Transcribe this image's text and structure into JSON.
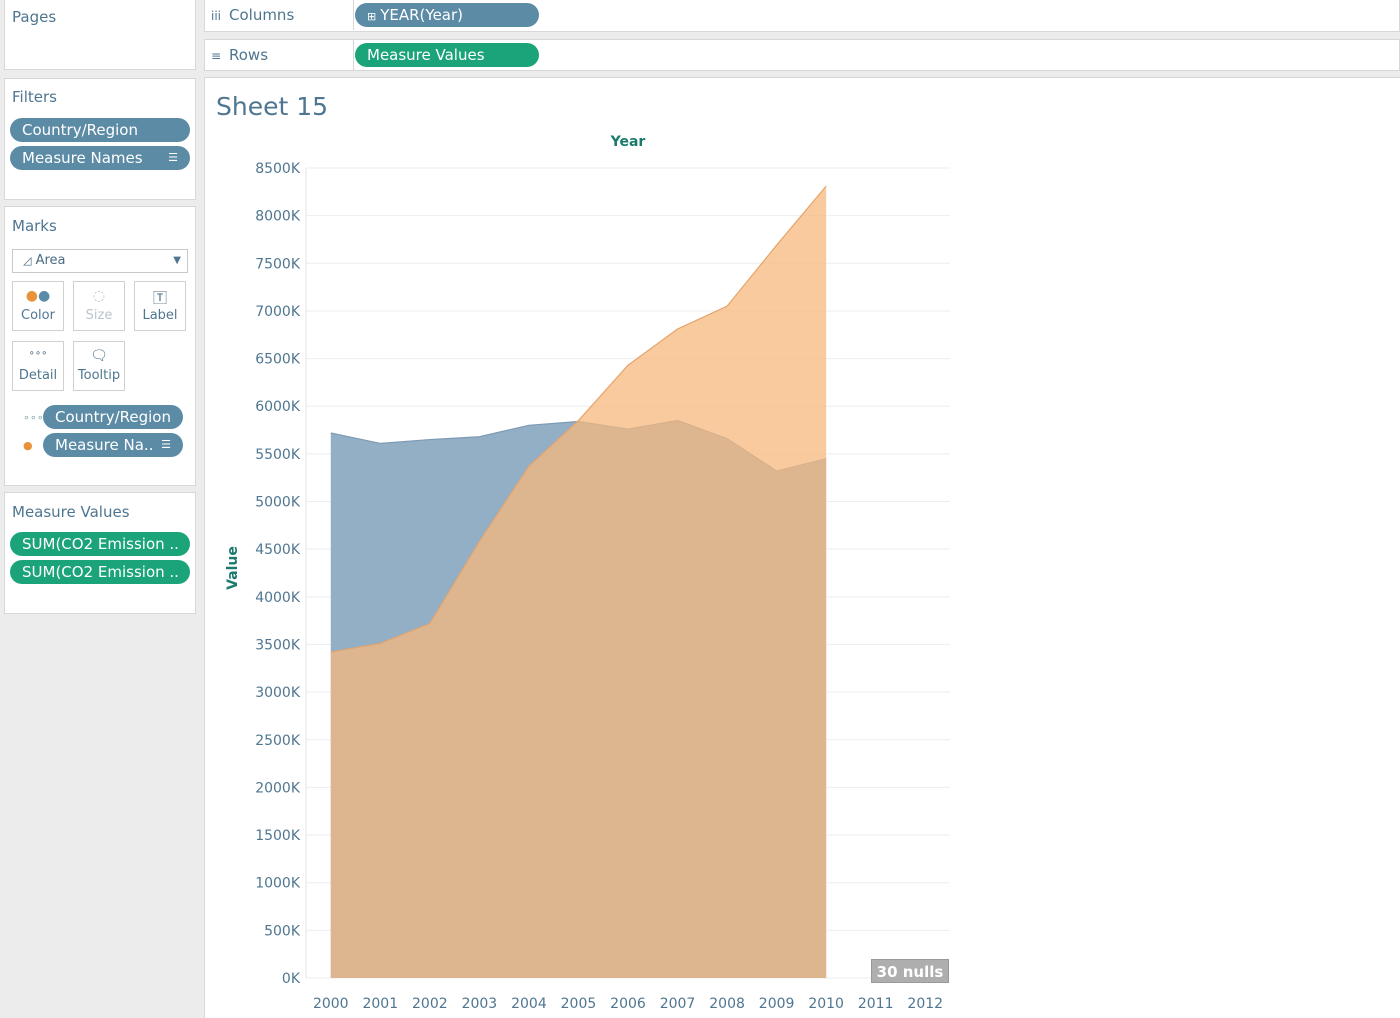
{
  "pages": {
    "title": "Pages"
  },
  "shelves": {
    "columns": {
      "label": "Columns",
      "pill": "YEAR(Year)",
      "pill_icon": "⊞"
    },
    "rows": {
      "label": "Rows",
      "pill": "Measure Values"
    }
  },
  "filters": {
    "title": "Filters",
    "items": [
      "Country/Region",
      "Measure Names"
    ]
  },
  "marks": {
    "title": "Marks",
    "mark_type": "Area",
    "cards": {
      "color": "Color",
      "size": "Size",
      "label": "Label",
      "detail": "Detail",
      "tooltip": "Tooltip"
    },
    "fields": [
      "Country/Region",
      "Measure Na.."
    ]
  },
  "measure_values": {
    "title": "Measure Values",
    "items": [
      "SUM(CO2 Emission ..",
      "SUM(CO2 Emission .."
    ]
  },
  "sheet": {
    "title": "Sheet 15"
  },
  "nulls_badge": "30 nulls",
  "colors": {
    "blue_area": "#92afc6",
    "orange_area": "#f5b87e",
    "overlap_area": "#cf9a68",
    "axis_text": "#4f7690",
    "axis_title": "#1b7a6c"
  },
  "chart_data": {
    "type": "area",
    "xlabel": "Year",
    "ylabel": "Value",
    "x": [
      2000,
      2001,
      2002,
      2003,
      2004,
      2005,
      2006,
      2007,
      2008,
      2009,
      2010,
      2011,
      2012
    ],
    "ylim": [
      0,
      8500000
    ],
    "yticks": [
      0,
      500000,
      1000000,
      1500000,
      2000000,
      2500000,
      3000000,
      3500000,
      4000000,
      4500000,
      5000000,
      5500000,
      6000000,
      6500000,
      7000000,
      7500000,
      8000000,
      8500000
    ],
    "ytick_labels": [
      "0K",
      "500K",
      "1000K",
      "1500K",
      "2000K",
      "2500K",
      "3000K",
      "3500K",
      "4000K",
      "4500K",
      "5000K",
      "5500K",
      "6000K",
      "6500K",
      "7000K",
      "7500K",
      "8000K",
      "8500K"
    ],
    "series": [
      {
        "color": "#92afc6",
        "values": [
          5720000,
          5610000,
          5650000,
          5680000,
          5800000,
          5840000,
          5760000,
          5850000,
          5660000,
          5320000,
          5450000,
          null,
          null
        ]
      },
      {
        "color": "#f5b87e",
        "values": [
          3420000,
          3510000,
          3720000,
          4580000,
          5370000,
          5850000,
          6430000,
          6810000,
          7050000,
          7690000,
          8310000,
          null,
          null
        ]
      }
    ],
    "grid": true
  }
}
